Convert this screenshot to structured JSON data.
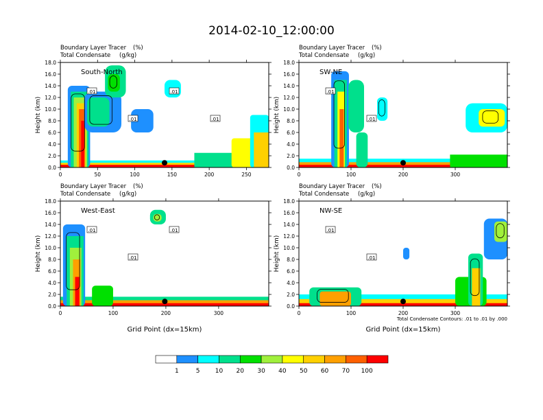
{
  "title": "2014-02-10_12:00:00",
  "chart_data": [
    {
      "type": "heatmap",
      "panel_label": "South-North",
      "subtitle_line1": "Boundary Layer Tracer",
      "subtitle_unit1": "(%)",
      "subtitle_line2": "Total Condensate",
      "subtitle_unit2": "(g/kg)",
      "ylabel": "Height (km)",
      "xlabel": "",
      "xlim": [
        0,
        280
      ],
      "ylim": [
        0,
        18
      ],
      "xticks": [
        0,
        50,
        100,
        150,
        200,
        250
      ],
      "yticks": [
        "0.0",
        "2.0",
        "4.0",
        "6.0",
        "8.0",
        "10.0",
        "12.0",
        "14.0",
        "16.0",
        "18.0"
      ],
      "marker_x": 140,
      "contour_labels": [
        ".01",
        ".01",
        ".01",
        ".01"
      ]
    },
    {
      "type": "heatmap",
      "panel_label": "SW-NE",
      "subtitle_line1": "Boundary Layer Tracer",
      "subtitle_unit1": "(%)",
      "subtitle_line2": "Total Condensate",
      "subtitle_unit2": "(g/kg)",
      "ylabel": "Height (km)",
      "xlabel": "",
      "xlim": [
        0,
        400
      ],
      "ylim": [
        0,
        18
      ],
      "xticks": [
        0,
        100,
        200,
        300
      ],
      "yticks": [
        "0.0",
        "2.0",
        "4.0",
        "6.0",
        "8.0",
        "10.0",
        "12.0",
        "14.0",
        "16.0",
        "18.0"
      ],
      "marker_x": 200,
      "contour_labels": [
        ".01",
        ".01"
      ]
    },
    {
      "type": "heatmap",
      "panel_label": "West-East",
      "subtitle_line1": "Boundary Layer Tracer",
      "subtitle_unit1": "(%)",
      "subtitle_line2": "Total Condensate",
      "subtitle_unit2": "(g/kg)",
      "ylabel": "Height (km)",
      "xlabel": "Grid Point (dx=15km)",
      "xlim": [
        0,
        395
      ],
      "ylim": [
        0,
        18
      ],
      "xticks": [
        0,
        100,
        200,
        300
      ],
      "yticks": [
        "0.0",
        "2.0",
        "4.0",
        "6.0",
        "8.0",
        "10.0",
        "12.0",
        "14.0",
        "16.0",
        "18.0"
      ],
      "marker_x": 198,
      "contour_labels": [
        ".01",
        ".01",
        ".01"
      ]
    },
    {
      "type": "heatmap",
      "panel_label": "NW-SE",
      "subtitle_line1": "Boundary Layer Tracer",
      "subtitle_unit1": "(%)",
      "subtitle_line2": "Total Condensate",
      "subtitle_unit2": "(g/kg)",
      "ylabel": "Height (km)",
      "xlabel": "Grid Point (dx=15km)",
      "xlim": [
        0,
        400
      ],
      "ylim": [
        0,
        18
      ],
      "xticks": [
        0,
        100,
        200,
        300
      ],
      "yticks": [
        "0.0",
        "2.0",
        "4.0",
        "6.0",
        "8.0",
        "10.0",
        "12.0",
        "14.0",
        "16.0",
        "18.0"
      ],
      "marker_x": 200,
      "contour_labels": [
        ".01",
        ".01"
      ],
      "footnote": "Total Condensate Contours: .01 to .01 by .000"
    }
  ],
  "colorbar": {
    "labels": [
      "1",
      "5",
      "10",
      "20",
      "30",
      "40",
      "50",
      "60",
      "70",
      "100"
    ],
    "colors": [
      "#ffffff",
      "#1e90ff",
      "#00ffff",
      "#00e08c",
      "#00e000",
      "#a0f03c",
      "#ffff00",
      "#ffd000",
      "#ffa000",
      "#ff6000",
      "#ff0000"
    ]
  }
}
